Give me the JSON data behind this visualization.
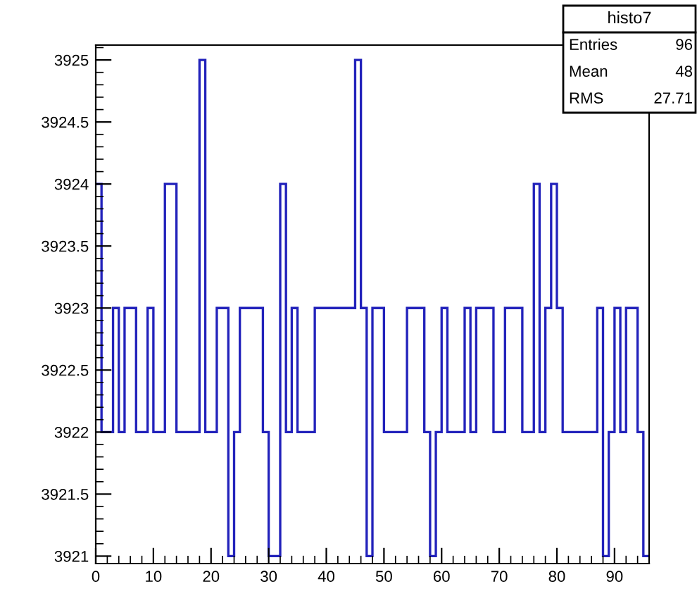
{
  "chart_data": {
    "type": "histogram",
    "title": "histo7",
    "bins": [
      0,
      1,
      2,
      3,
      4,
      5,
      6,
      7,
      8,
      9,
      10,
      11,
      12,
      13,
      14,
      15,
      16,
      17,
      18,
      19,
      20,
      21,
      22,
      23,
      24,
      25,
      26,
      27,
      28,
      29,
      30,
      31,
      32,
      33,
      34,
      35,
      36,
      37,
      38,
      39,
      40,
      41,
      42,
      43,
      44,
      45,
      46,
      47,
      48,
      49,
      50,
      51,
      52,
      53,
      54,
      55,
      56,
      57,
      58,
      59,
      60,
      61,
      62,
      63,
      64,
      65,
      66,
      67,
      68,
      69,
      70,
      71,
      72,
      73,
      74,
      75,
      76,
      77,
      78,
      79,
      80,
      81,
      82,
      83,
      84,
      85,
      86,
      87,
      88,
      89,
      90,
      91,
      92,
      93,
      94,
      95,
      96
    ],
    "values": [
      3924,
      3922,
      3922,
      3923,
      3922,
      3923,
      3923,
      3922,
      3922,
      3923,
      3922,
      3922,
      3924,
      3924,
      3922,
      3922,
      3922,
      3922,
      3925,
      3922,
      3922,
      3923,
      3923,
      3921,
      3922,
      3923,
      3923,
      3923,
      3923,
      3922,
      3921,
      3921,
      3924,
      3922,
      3923,
      3922,
      3922,
      3922,
      3923,
      3923,
      3923,
      3923,
      3923,
      3923,
      3923,
      3925,
      3923,
      3921,
      3923,
      3923,
      3922,
      3922,
      3922,
      3922,
      3923,
      3923,
      3923,
      3922,
      3921,
      3922,
      3923,
      3922,
      3922,
      3922,
      3923,
      3922,
      3923,
      3923,
      3923,
      3922,
      3922,
      3923,
      3923,
      3923,
      3922,
      3922,
      3924,
      3922,
      3923,
      3924,
      3923,
      3922,
      3922,
      3922,
      3922,
      3922,
      3922,
      3923,
      3921,
      3922,
      3923,
      3922,
      3923,
      3923,
      3922,
      3921
    ],
    "color": "#2222bb",
    "xlim": [
      0,
      96
    ],
    "xticks": [
      0,
      10,
      20,
      30,
      40,
      50,
      60,
      70,
      80,
      90
    ],
    "ylim": [
      3920.94,
      3925.12
    ],
    "yticks": [
      3921,
      3921.5,
      3922,
      3922.5,
      3923,
      3923.5,
      3924,
      3924.5,
      3925
    ],
    "annotations": [
      "Entries 96",
      "Mean 48",
      "RMS 27.71"
    ],
    "grid": false
  }
}
